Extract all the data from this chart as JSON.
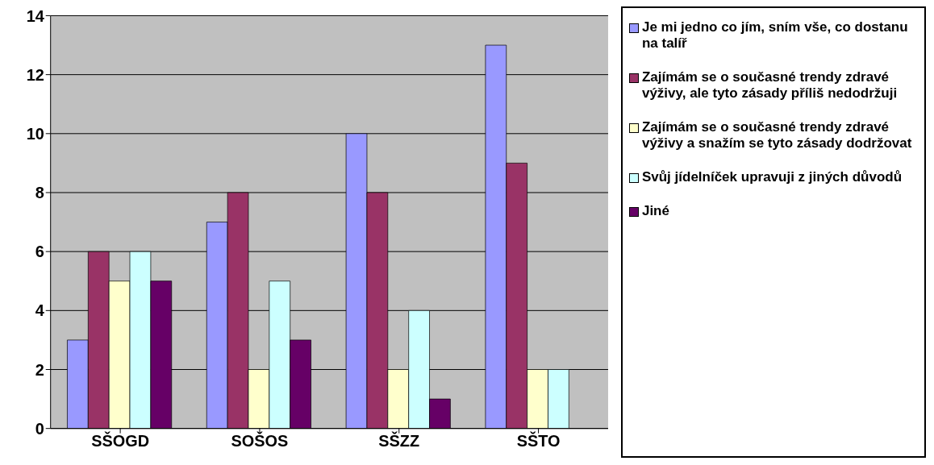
{
  "chart_data": {
    "type": "bar",
    "categories": [
      "SŠOGD",
      "SOŠOS",
      "SŠZZ",
      "SŠTO"
    ],
    "series": [
      {
        "name": "Je mi jedno co jím, sním vše, co dostanu na talíř",
        "color": "#9999ff",
        "values": [
          3,
          7,
          10,
          13
        ]
      },
      {
        "name": "Zajímám se o současné trendy zdravé výživy, ale tyto zásady příliš nedodržuji",
        "color": "#993366",
        "values": [
          6,
          8,
          8,
          9
        ]
      },
      {
        "name": "Zajímám se o současné trendy zdravé výživy a snažím se tyto zásady dodržovat",
        "color": "#ffffcc",
        "values": [
          5,
          2,
          2,
          2
        ]
      },
      {
        "name": "Svůj jídelníček upravuji z jiných důvodů",
        "color": "#ccffff",
        "values": [
          6,
          5,
          4,
          2
        ]
      },
      {
        "name": "Jiné",
        "color": "#660066",
        "values": [
          5,
          3,
          1,
          0
        ]
      }
    ],
    "ylim": [
      0,
      14
    ],
    "yticks": [
      0,
      2,
      4,
      6,
      8,
      10,
      12,
      14
    ],
    "grid": "y",
    "legend": "right"
  }
}
